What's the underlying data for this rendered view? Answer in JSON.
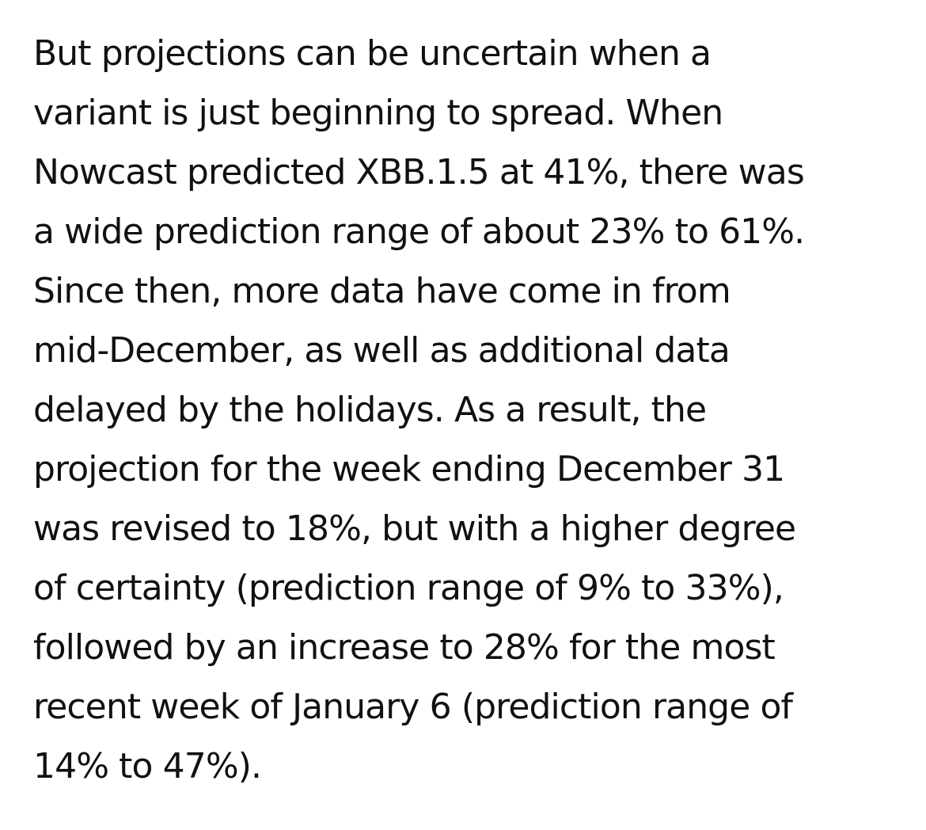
{
  "article": {
    "lines": [
      "But projections can be uncertain when a",
      "variant is just beginning to spread. When",
      "Nowcast predicted XBB.1.5 at 41%, there was",
      "a wide prediction range of about 23% to 61%.",
      "Since then, more data have come in from",
      "mid-December, as well as additional data",
      "delayed by the holidays. As a result, the",
      "projection for the week ending December 31",
      "was revised to 18%, but with a higher degree",
      "of certainty (prediction range of 9% to 33%),",
      "followed by an increase to 28% for the most",
      "recent week of January 6 (prediction range of",
      "14% to 47%)."
    ]
  }
}
